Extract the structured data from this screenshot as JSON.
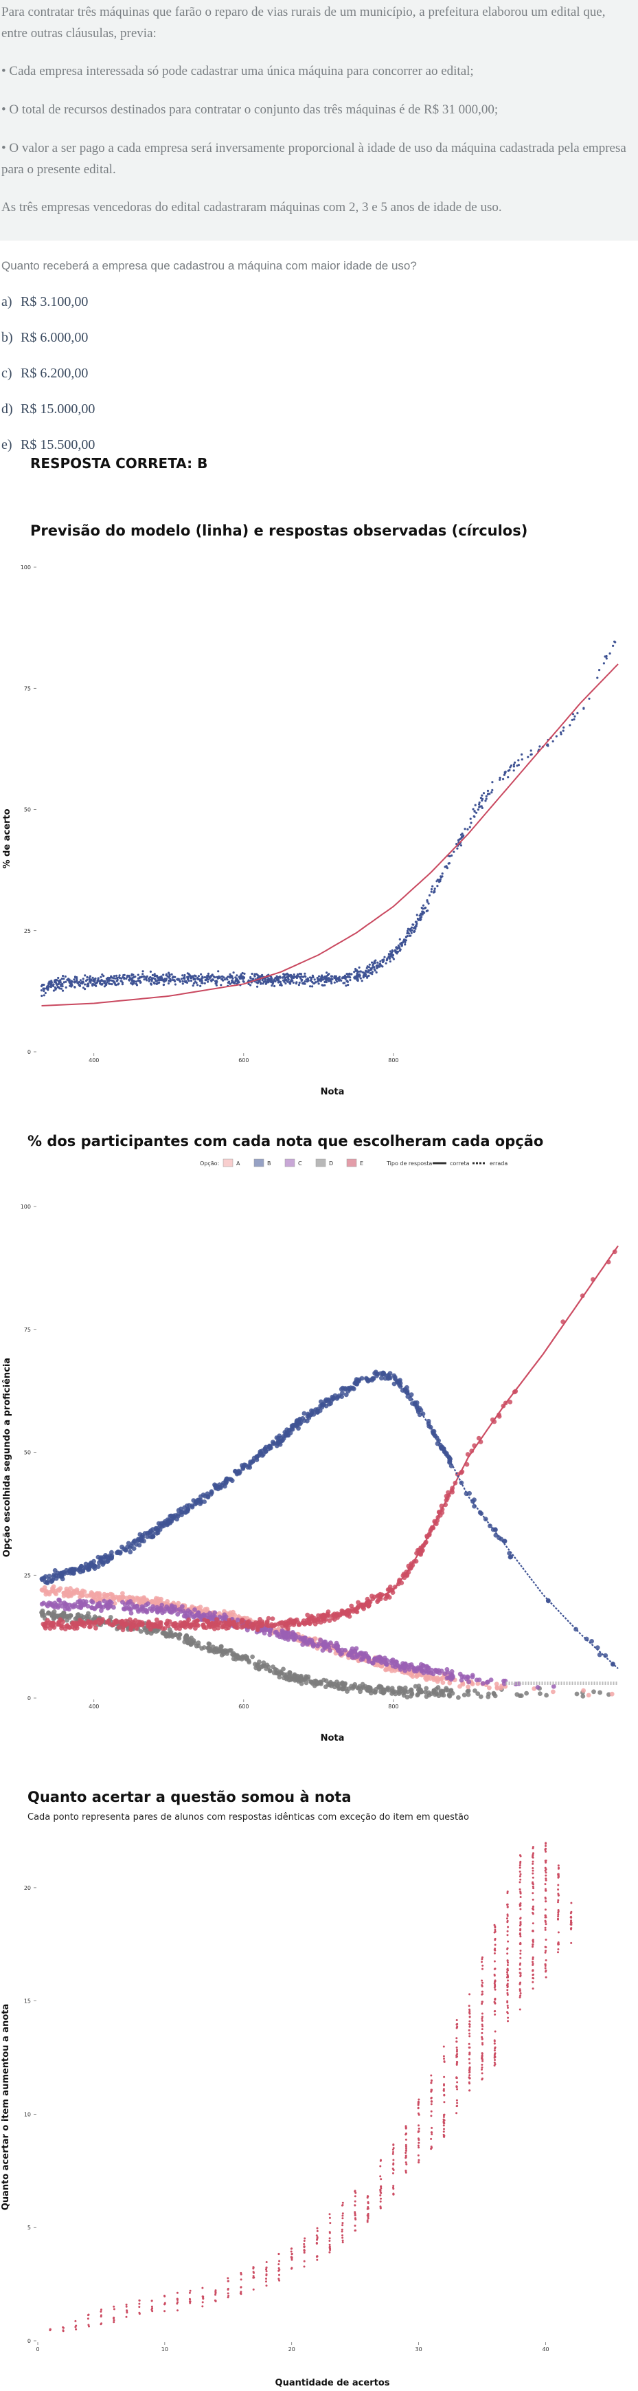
{
  "statement": {
    "intro": "Para contratar três máquinas que farão o reparo de vias rurais de um município, a prefeitura elaborou um edital que, entre outras cláusulas, previa:",
    "clauses": [
      "• Cada empresa interessada só pode cadastrar uma única máquina para concorrer ao edital;",
      "• O total de recursos destinados para contratar o conjunto das três máquinas é de R$ 31 000,00;",
      "• O valor a ser pago a cada empresa será inversamente proporcional à idade de uso da máquina cadastrada pela empresa para o presente edital."
    ],
    "closing": "As três empresas vencedoras do edital cadastraram máquinas com 2, 3 e 5 anos de idade de uso."
  },
  "question": "Quanto receberá a empresa que cadastrou a máquina com maior idade de uso?",
  "options": [
    {
      "letter": "a)",
      "text": "R$ 3.100,00"
    },
    {
      "letter": "b)",
      "text": "R$ 6.000,00"
    },
    {
      "letter": "c)",
      "text": "R$ 6.200,00"
    },
    {
      "letter": "d)",
      "text": "R$ 15.000,00"
    },
    {
      "letter": "e)",
      "text": "R$ 15.500,00"
    }
  ],
  "answer": "RESPOSTA CORRETA: B",
  "chart_data": [
    {
      "type": "scatter",
      "title": "Previsão do modelo (linha) e respostas observadas (círculos)",
      "xlabel": "Nota",
      "ylabel": "% de acerto",
      "xlim": [
        325,
        1100
      ],
      "ylim": [
        0,
        100
      ],
      "xticks": [
        400,
        600,
        800
      ],
      "yticks": [
        0,
        25,
        50,
        75,
        100
      ],
      "grid": false,
      "colors": {
        "points": "#3f5394",
        "line": "#c9485f"
      },
      "model_curve": {
        "x": [
          330,
          400,
          500,
          600,
          650,
          700,
          750,
          800,
          850,
          900,
          950,
          1000,
          1050,
          1100
        ],
        "y": [
          9.5,
          10,
          11.5,
          14,
          16.5,
          20,
          24.5,
          30,
          37,
          45,
          54,
          63,
          72,
          80
        ]
      },
      "observed": {
        "x": [
          330,
          350,
          400,
          450,
          500,
          550,
          600,
          650,
          700,
          730,
          760,
          780,
          800,
          820,
          840,
          860,
          880,
          900,
          920,
          940,
          960,
          980,
          1000,
          1020,
          1040,
          1060,
          1080,
          1100
        ],
        "y": [
          13,
          14,
          14.5,
          15,
          15,
          15,
          15,
          15,
          15,
          15,
          16,
          18,
          20,
          24,
          29,
          35,
          41,
          47,
          52,
          56,
          59,
          61,
          63,
          65,
          69,
          73,
          80,
          86
        ]
      }
    },
    {
      "type": "scatter",
      "title": "% dos participantes com cada nota que escolheram cada opção",
      "xlabel": "Nota",
      "ylabel": "Opção escolhida segundo a proficiência",
      "xlim": [
        325,
        1100
      ],
      "ylim": [
        0,
        100
      ],
      "xticks": [
        400,
        600,
        800
      ],
      "yticks": [
        0,
        25,
        50,
        75,
        100
      ],
      "grid": false,
      "legend": {
        "placement": "top",
        "option_title": "Opção:",
        "options": [
          {
            "name": "A",
            "color": "#f2a6a6"
          },
          {
            "name": "B",
            "color": "#3f5394"
          },
          {
            "name": "C",
            "color": "#9a5fb4"
          },
          {
            "name": "D",
            "color": "#7d7d7d"
          },
          {
            "name": "E",
            "color": "#cc4d63"
          }
        ],
        "type_title": "Tipo de resposta",
        "types": [
          {
            "name": "correta",
            "style": "solid"
          },
          {
            "name": "errada",
            "style": "dashed"
          }
        ]
      },
      "series": [
        {
          "name": "A",
          "color": "#f2a6a6",
          "x": [
            330,
            400,
            500,
            600,
            700,
            800,
            900,
            1000,
            1050,
            1100
          ],
          "y": [
            22,
            21,
            19,
            16,
            11,
            6,
            3,
            1.5,
            1,
            1
          ]
        },
        {
          "name": "B",
          "color": "#3f5394",
          "x": [
            330,
            400,
            450,
            500,
            550,
            600,
            650,
            700,
            730,
            760,
            780,
            800,
            820,
            850,
            880,
            900,
            950,
            1000,
            1050,
            1100
          ],
          "y": [
            24,
            27,
            31,
            36,
            41,
            47,
            53,
            59,
            62,
            65,
            66,
            65,
            62,
            55,
            47,
            41,
            31,
            21,
            13,
            6
          ]
        },
        {
          "name": "C",
          "color": "#9a5fb4",
          "x": [
            330,
            400,
            500,
            600,
            700,
            800,
            900,
            1000,
            1050,
            1100
          ],
          "y": [
            19,
            19,
            18,
            15,
            11,
            7,
            4,
            2.5,
            2,
            2
          ]
        },
        {
          "name": "D",
          "color": "#7d7d7d",
          "x": [
            330,
            400,
            500,
            600,
            650,
            700,
            750,
            800,
            900,
            1000,
            1100
          ],
          "y": [
            17,
            16,
            13,
            8,
            5,
            3,
            2,
            1.5,
            1,
            1,
            1
          ]
        },
        {
          "name": "E",
          "color": "#cc4d63",
          "x": [
            330,
            400,
            500,
            600,
            650,
            700,
            750,
            800,
            820,
            840,
            860,
            880,
            900,
            950,
            1000,
            1050,
            1100
          ],
          "y": [
            15,
            15,
            15,
            15,
            15,
            16,
            18,
            22,
            26,
            31,
            37,
            43,
            49,
            60,
            70,
            81,
            92
          ]
        }
      ]
    },
    {
      "type": "scatter",
      "title": "Quanto acertar a questão somou à nota",
      "subtitle": "Cada ponto representa pares de alunos com respostas idênticas com exceção do item em questão",
      "xlabel": "Quantidade de acertos",
      "ylabel": "Quanto acertar o item aumentou a anota",
      "xlim": [
        0,
        43
      ],
      "ylim": [
        0,
        22
      ],
      "xticks": [
        0,
        10,
        20,
        30,
        40
      ],
      "yticks": [
        0,
        5,
        10,
        15,
        20
      ],
      "grid": false,
      "colors": {
        "points": "#cc4d63"
      },
      "x": [
        1,
        2,
        3,
        4,
        5,
        6,
        7,
        8,
        9,
        10,
        11,
        12,
        13,
        14,
        15,
        16,
        17,
        18,
        19,
        20,
        21,
        22,
        23,
        24,
        25,
        26,
        27,
        28,
        29,
        30,
        31,
        32,
        33,
        34,
        35,
        36,
        37,
        38,
        39,
        40,
        41,
        42
      ],
      "ymin": [
        0.3,
        0.4,
        0.5,
        0.6,
        0.7,
        0.8,
        0.9,
        1.0,
        1.1,
        1.2,
        1.3,
        1.4,
        1.5,
        1.6,
        1.8,
        2.0,
        2.2,
        2.4,
        2.6,
        2.9,
        3.2,
        3.5,
        3.9,
        4.3,
        4.7,
        5.2,
        5.8,
        6.4,
        7.0,
        7.7,
        8.4,
        9.0,
        10.0,
        10.8,
        11.5,
        12.0,
        14.0,
        14.5,
        15.5,
        16.0,
        17.0,
        17.5
      ],
      "ymax": [
        0.6,
        0.8,
        1.0,
        1.2,
        1.4,
        1.6,
        1.7,
        1.8,
        1.9,
        2.0,
        2.2,
        2.3,
        2.4,
        2.6,
        2.8,
        3.0,
        3.3,
        3.6,
        3.9,
        4.3,
        4.7,
        5.1,
        5.6,
        6.1,
        6.7,
        7.3,
        8.0,
        8.8,
        9.7,
        10.7,
        11.8,
        13.0,
        14.2,
        15.5,
        17.0,
        18.5,
        20.0,
        21.5,
        22.0,
        22.0,
        21.0,
        19.5
      ]
    }
  ]
}
